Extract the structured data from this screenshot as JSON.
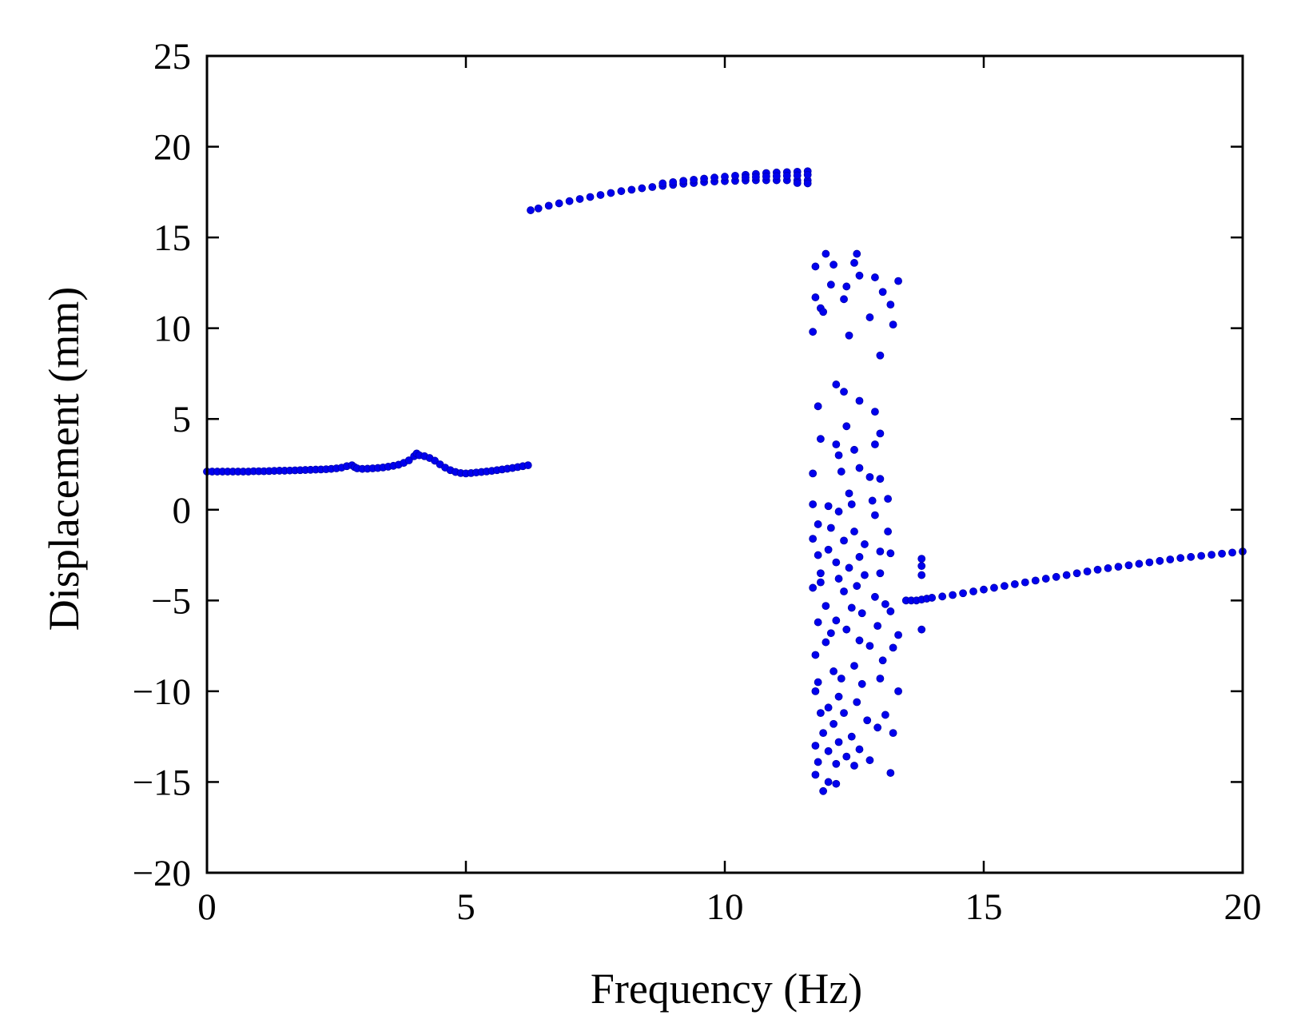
{
  "chart_data": {
    "type": "scatter",
    "title": "",
    "xlabel": "Frequency (Hz)",
    "ylabel": "Displacement (mm)",
    "xlim": [
      0,
      20
    ],
    "ylim": [
      -20,
      25
    ],
    "xticks": [
      0,
      5,
      10,
      15,
      20
    ],
    "yticks": [
      -20,
      -15,
      -10,
      -5,
      0,
      5,
      10,
      15,
      20,
      25
    ],
    "xtick_labels": [
      "0",
      "5",
      "10",
      "15",
      "20"
    ],
    "ytick_labels": [
      "−20",
      "−15",
      "−10",
      "−5",
      "0",
      "5",
      "10",
      "15",
      "20",
      "25"
    ],
    "grid": false,
    "legend": "none",
    "marker_color": "#0000ee",
    "series": [
      {
        "points": [
          [
            0.0,
            2.1
          ],
          [
            0.1,
            2.1
          ],
          [
            0.2,
            2.1
          ],
          [
            0.3,
            2.1
          ],
          [
            0.4,
            2.1
          ],
          [
            0.5,
            2.1
          ],
          [
            0.6,
            2.1
          ],
          [
            0.7,
            2.1
          ],
          [
            0.8,
            2.1
          ],
          [
            0.9,
            2.12
          ],
          [
            1.0,
            2.12
          ],
          [
            1.1,
            2.12
          ],
          [
            1.2,
            2.13
          ],
          [
            1.3,
            2.14
          ],
          [
            1.4,
            2.15
          ],
          [
            1.5,
            2.15
          ],
          [
            1.6,
            2.16
          ],
          [
            1.7,
            2.17
          ],
          [
            1.8,
            2.18
          ],
          [
            1.9,
            2.19
          ],
          [
            2.0,
            2.2
          ],
          [
            2.1,
            2.21
          ],
          [
            2.2,
            2.22
          ],
          [
            2.3,
            2.23
          ],
          [
            2.4,
            2.25
          ],
          [
            2.5,
            2.28
          ],
          [
            2.6,
            2.32
          ],
          [
            2.7,
            2.4
          ],
          [
            2.8,
            2.45
          ],
          [
            2.85,
            2.35
          ],
          [
            2.9,
            2.28
          ],
          [
            3.0,
            2.25
          ],
          [
            3.1,
            2.26
          ],
          [
            3.2,
            2.28
          ],
          [
            3.3,
            2.3
          ],
          [
            3.4,
            2.33
          ],
          [
            3.5,
            2.37
          ],
          [
            3.6,
            2.42
          ],
          [
            3.7,
            2.48
          ],
          [
            3.8,
            2.58
          ],
          [
            3.9,
            2.72
          ],
          [
            4.0,
            2.95
          ],
          [
            4.05,
            3.1
          ],
          [
            4.1,
            3.0
          ],
          [
            4.2,
            2.95
          ],
          [
            4.3,
            2.85
          ],
          [
            4.4,
            2.7
          ],
          [
            4.5,
            2.5
          ],
          [
            4.6,
            2.32
          ],
          [
            4.7,
            2.18
          ],
          [
            4.8,
            2.08
          ],
          [
            4.9,
            2.02
          ],
          [
            5.0,
            2.0
          ],
          [
            5.1,
            2.02
          ],
          [
            5.2,
            2.05
          ],
          [
            5.3,
            2.08
          ],
          [
            5.4,
            2.11
          ],
          [
            5.5,
            2.14
          ],
          [
            5.6,
            2.18
          ],
          [
            5.7,
            2.22
          ],
          [
            5.8,
            2.26
          ],
          [
            5.9,
            2.3
          ],
          [
            6.0,
            2.35
          ],
          [
            6.1,
            2.4
          ],
          [
            6.2,
            2.45
          ]
        ]
      },
      {
        "points": [
          [
            6.25,
            16.5
          ],
          [
            6.4,
            16.6
          ],
          [
            6.6,
            16.75
          ],
          [
            6.8,
            16.88
          ],
          [
            7.0,
            17.0
          ],
          [
            7.2,
            17.12
          ],
          [
            7.4,
            17.23
          ],
          [
            7.6,
            17.34
          ],
          [
            7.8,
            17.45
          ],
          [
            8.0,
            17.55
          ],
          [
            8.2,
            17.63
          ],
          [
            8.4,
            17.71
          ],
          [
            8.6,
            17.78
          ],
          [
            8.8,
            17.84
          ],
          [
            9.0,
            17.9
          ],
          [
            9.2,
            17.96
          ],
          [
            9.4,
            18.0
          ],
          [
            9.6,
            18.05
          ],
          [
            9.8,
            18.08
          ],
          [
            10.0,
            18.1
          ],
          [
            10.2,
            18.12
          ],
          [
            10.4,
            18.14
          ],
          [
            10.6,
            18.15
          ],
          [
            10.8,
            18.15
          ],
          [
            11.0,
            18.15
          ],
          [
            11.2,
            18.15
          ],
          [
            11.4,
            18.15
          ],
          [
            11.6,
            18.15
          ],
          [
            8.8,
            17.98
          ],
          [
            9.0,
            18.05
          ],
          [
            9.2,
            18.12
          ],
          [
            9.4,
            18.18
          ],
          [
            9.6,
            18.24
          ],
          [
            9.8,
            18.3
          ],
          [
            10.0,
            18.35
          ],
          [
            10.2,
            18.4
          ],
          [
            10.4,
            18.45
          ],
          [
            10.6,
            18.5
          ],
          [
            10.8,
            18.55
          ],
          [
            11.0,
            18.58
          ],
          [
            11.2,
            18.6
          ],
          [
            11.4,
            18.62
          ],
          [
            11.6,
            18.65
          ],
          [
            10.4,
            18.3
          ],
          [
            10.6,
            18.33
          ],
          [
            10.8,
            18.36
          ],
          [
            11.0,
            18.38
          ],
          [
            11.2,
            18.4
          ],
          [
            11.4,
            18.42
          ],
          [
            11.6,
            18.45
          ],
          [
            11.6,
            17.98
          ],
          [
            11.4,
            18.0
          ]
        ]
      },
      {
        "points": [
          [
            13.5,
            -5.0
          ],
          [
            13.6,
            -5.0
          ],
          [
            13.7,
            -5.0
          ],
          [
            13.8,
            -4.95
          ],
          [
            13.9,
            -4.9
          ],
          [
            14.0,
            -4.85
          ],
          [
            14.2,
            -4.78
          ],
          [
            14.4,
            -4.7
          ],
          [
            14.6,
            -4.6
          ],
          [
            14.8,
            -4.5
          ],
          [
            15.0,
            -4.4
          ],
          [
            15.2,
            -4.3
          ],
          [
            15.4,
            -4.2
          ],
          [
            15.6,
            -4.1
          ],
          [
            15.8,
            -4.0
          ],
          [
            16.0,
            -3.9
          ],
          [
            16.2,
            -3.8
          ],
          [
            16.4,
            -3.7
          ],
          [
            16.6,
            -3.6
          ],
          [
            16.8,
            -3.5
          ],
          [
            17.0,
            -3.4
          ],
          [
            17.2,
            -3.3
          ],
          [
            17.4,
            -3.22
          ],
          [
            17.6,
            -3.14
          ],
          [
            17.8,
            -3.06
          ],
          [
            18.0,
            -2.98
          ],
          [
            18.2,
            -2.9
          ],
          [
            18.4,
            -2.82
          ],
          [
            18.6,
            -2.74
          ],
          [
            18.8,
            -2.66
          ],
          [
            19.0,
            -2.6
          ],
          [
            19.2,
            -2.54
          ],
          [
            19.4,
            -2.48
          ],
          [
            19.6,
            -2.42
          ],
          [
            19.8,
            -2.36
          ],
          [
            20.0,
            -2.3
          ],
          [
            13.8,
            -2.7
          ],
          [
            13.8,
            -3.1
          ],
          [
            13.8,
            -3.6
          ],
          [
            13.8,
            -6.6
          ]
        ]
      },
      {
        "points": [
          [
            11.95,
            14.1
          ],
          [
            12.55,
            14.1
          ],
          [
            11.75,
            13.4
          ],
          [
            12.1,
            13.5
          ],
          [
            12.5,
            13.6
          ],
          [
            12.9,
            12.8
          ],
          [
            13.35,
            12.6
          ],
          [
            12.05,
            12.4
          ],
          [
            12.6,
            12.9
          ],
          [
            13.05,
            12.0
          ],
          [
            11.75,
            11.7
          ],
          [
            12.3,
            11.6
          ],
          [
            11.85,
            11.1
          ],
          [
            12.35,
            12.3
          ],
          [
            13.2,
            11.3
          ],
          [
            11.9,
            10.9
          ],
          [
            12.8,
            10.6
          ],
          [
            13.25,
            10.2
          ],
          [
            11.7,
            9.8
          ],
          [
            12.4,
            9.6
          ],
          [
            13.0,
            8.5
          ],
          [
            12.15,
            6.9
          ],
          [
            12.6,
            6.0
          ],
          [
            12.3,
            6.5
          ],
          [
            11.8,
            5.7
          ],
          [
            12.9,
            5.4
          ],
          [
            13.0,
            4.2
          ],
          [
            12.35,
            4.6
          ],
          [
            11.85,
            3.9
          ],
          [
            12.15,
            3.6
          ],
          [
            12.5,
            3.3
          ],
          [
            12.9,
            3.6
          ],
          [
            12.2,
            3.0
          ],
          [
            11.7,
            2.0
          ],
          [
            12.25,
            2.1
          ],
          [
            12.8,
            1.8
          ],
          [
            13.0,
            1.7
          ],
          [
            12.6,
            2.3
          ],
          [
            12.4,
            0.9
          ],
          [
            13.15,
            0.6
          ],
          [
            11.7,
            0.3
          ],
          [
            12.0,
            0.2
          ],
          [
            12.45,
            0.3
          ],
          [
            12.85,
            0.5
          ],
          [
            12.2,
            -0.1
          ],
          [
            12.9,
            -0.3
          ],
          [
            11.8,
            -0.8
          ],
          [
            12.05,
            -1.0
          ],
          [
            12.5,
            -1.2
          ],
          [
            13.15,
            -1.2
          ],
          [
            11.7,
            -1.6
          ],
          [
            12.3,
            -1.7
          ],
          [
            12.7,
            -1.9
          ],
          [
            12.0,
            -2.2
          ],
          [
            11.8,
            -2.5
          ],
          [
            12.6,
            -2.6
          ],
          [
            13.0,
            -2.3
          ],
          [
            13.2,
            -2.4
          ],
          [
            12.15,
            -2.9
          ],
          [
            12.4,
            -3.2
          ],
          [
            11.85,
            -3.5
          ],
          [
            12.2,
            -3.8
          ],
          [
            12.7,
            -3.6
          ],
          [
            13.0,
            -3.5
          ],
          [
            12.55,
            -4.2
          ],
          [
            11.7,
            -4.3
          ],
          [
            12.3,
            -4.5
          ],
          [
            12.9,
            -4.8
          ],
          [
            13.1,
            -5.2
          ],
          [
            11.95,
            -5.3
          ],
          [
            12.45,
            -5.4
          ],
          [
            12.65,
            -5.7
          ],
          [
            13.2,
            -5.6
          ],
          [
            12.15,
            -6.1
          ],
          [
            11.8,
            -6.2
          ],
          [
            12.95,
            -6.4
          ],
          [
            12.35,
            -6.6
          ],
          [
            13.35,
            -6.9
          ],
          [
            11.95,
            -7.3
          ],
          [
            12.6,
            -7.2
          ],
          [
            12.8,
            -7.5
          ],
          [
            13.25,
            -7.6
          ],
          [
            11.75,
            -8.0
          ],
          [
            12.5,
            -8.6
          ],
          [
            12.1,
            -8.9
          ],
          [
            13.05,
            -8.3
          ],
          [
            12.25,
            -9.3
          ],
          [
            11.8,
            -9.5
          ],
          [
            12.65,
            -9.6
          ],
          [
            13.0,
            -9.3
          ],
          [
            11.75,
            -10.0
          ],
          [
            12.2,
            -10.3
          ],
          [
            12.55,
            -10.6
          ],
          [
            13.35,
            -10.0
          ],
          [
            12.0,
            -10.9
          ],
          [
            11.85,
            -11.2
          ],
          [
            12.3,
            -11.2
          ],
          [
            12.75,
            -11.6
          ],
          [
            13.1,
            -11.3
          ],
          [
            12.1,
            -11.8
          ],
          [
            11.9,
            -12.3
          ],
          [
            12.45,
            -12.5
          ],
          [
            12.95,
            -12.0
          ],
          [
            13.25,
            -12.3
          ],
          [
            12.2,
            -12.8
          ],
          [
            11.75,
            -13.0
          ],
          [
            12.0,
            -13.3
          ],
          [
            12.6,
            -13.2
          ],
          [
            12.35,
            -13.6
          ],
          [
            11.8,
            -13.9
          ],
          [
            12.15,
            -14.0
          ],
          [
            12.8,
            -13.8
          ],
          [
            11.75,
            -14.6
          ],
          [
            12.0,
            -15.0
          ],
          [
            13.2,
            -14.5
          ],
          [
            12.15,
            -15.1
          ],
          [
            11.9,
            -15.5
          ],
          [
            12.5,
            -14.1
          ],
          [
            11.85,
            -4.0
          ],
          [
            12.05,
            -6.8
          ]
        ]
      }
    ]
  }
}
